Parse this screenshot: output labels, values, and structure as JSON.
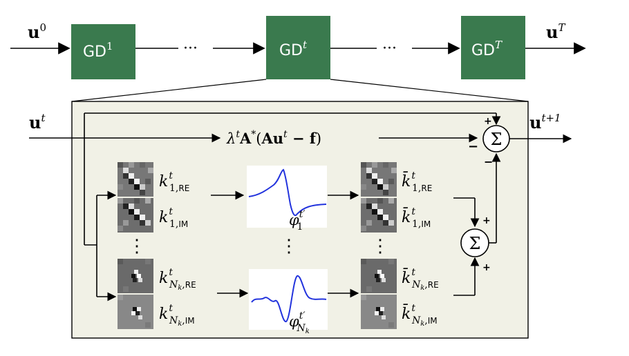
{
  "pipeline": {
    "input_symbol": "u",
    "input_superscript": "0",
    "output_symbol": "u",
    "output_superscript": "T",
    "blocks": [
      {
        "label": "GD",
        "superscript": "1"
      },
      {
        "label": "GD",
        "superscript": "t"
      },
      {
        "label": "GD",
        "superscript": "T"
      }
    ],
    "ellipsis": "···"
  },
  "detail": {
    "input_symbol": "u",
    "input_superscript": "t",
    "output_symbol": "u",
    "output_superscript": "t+1",
    "gradient_term": {
      "lambda": "λ",
      "lambda_sup": "t",
      "A": "A",
      "star": "*",
      "open": "(",
      "Au": "Au",
      "u_sup": "t",
      "minus_f": " − f",
      "close": ")"
    },
    "sum_symbol": "Σ",
    "sum_top_signs": {
      "top": "+",
      "left": "−",
      "bottom": "−"
    },
    "sum_bottom_signs": {
      "top": "+",
      "bottom": "+"
    },
    "vertical_dots": "⋮",
    "kernels": [
      {
        "k": "k",
        "sup": "t",
        "sub_index": "1",
        "sub_part": "RE"
      },
      {
        "k": "k",
        "sup": "t",
        "sub_index": "1",
        "sub_part": "IM"
      },
      {
        "k": "k",
        "sup": "t",
        "sub_index": "N",
        "sub_index_sub": "k",
        "sub_part": "RE"
      },
      {
        "k": "k",
        "sup": "t",
        "sub_index": "N",
        "sub_index_sub": "k",
        "sub_part": "IM"
      }
    ],
    "adjoint_kernels": [
      {
        "k": "k̄",
        "sup": "t",
        "sub_index": "1",
        "sub_part": "RE"
      },
      {
        "k": "k̄",
        "sup": "t",
        "sub_index": "1",
        "sub_part": "IM"
      },
      {
        "k": "k̄",
        "sup": "t",
        "sub_index": "N",
        "sub_index_sub": "k",
        "sub_part": "RE"
      },
      {
        "k": "k̄",
        "sup": "t",
        "sub_index": "N",
        "sub_index_sub": "k",
        "sub_part": "IM"
      }
    ],
    "activations": [
      {
        "phi": "φ",
        "sup": "t′",
        "sub_index": "1"
      },
      {
        "phi": "φ",
        "sup": "t′",
        "sub_index": "N",
        "sub_index_sub": "k"
      }
    ]
  },
  "colors": {
    "block_fill": "#3a7a4e",
    "panel_fill": "#f1f1e6",
    "curve": "#2233dd"
  }
}
